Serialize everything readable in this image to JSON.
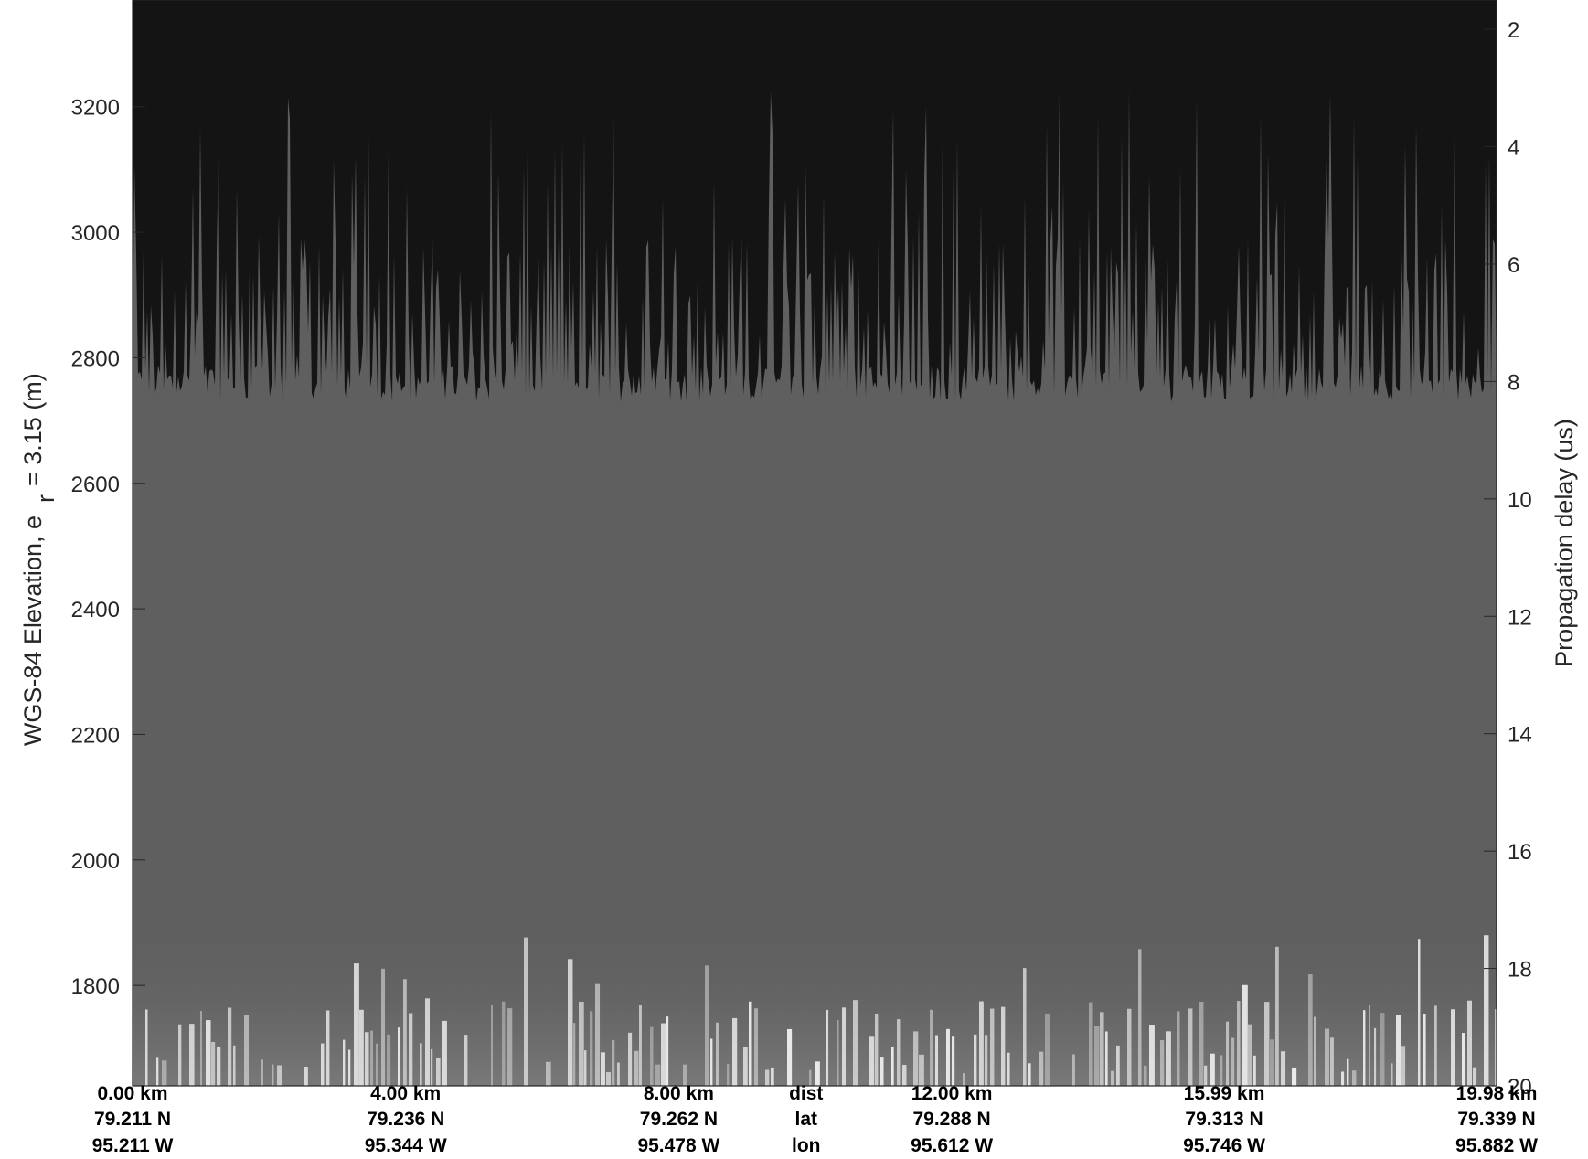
{
  "chart_data": {
    "type": "heatmap",
    "description_visible": "radar echogram",
    "ylabel_left": {
      "main": "WGS-84 Elevation, e",
      "subscript": "r",
      "suffix": "= 3.15 (m)"
    },
    "ylabel_right": "Propagation delay (us)",
    "left_axis": {
      "ylim": [
        1640,
        3370
      ],
      "ticks": [
        1800,
        2000,
        2200,
        2400,
        2600,
        2800,
        3000,
        3200
      ],
      "tick_labels": [
        "1800",
        "2000",
        "2200",
        "2400",
        "2600",
        "2800",
        "3000",
        "3200"
      ]
    },
    "right_axis": {
      "ylim": [
        20,
        1.5
      ],
      "direction": "reversed",
      "ticks": [
        2,
        4,
        6,
        8,
        10,
        12,
        14,
        16,
        18,
        20
      ],
      "tick_labels": [
        "2",
        "4",
        "6",
        "8",
        "10",
        "12",
        "14",
        "16",
        "18",
        "20"
      ]
    },
    "x_axis": {
      "xlim_km": [
        0,
        19.98
      ],
      "row_labels": [
        "dist",
        "lat",
        "lon"
      ],
      "ticks": [
        {
          "dist_km": 0.0,
          "dist": "0.00 km",
          "lat": "79.211 N",
          "lon": "95.211 W"
        },
        {
          "dist_km": 4.0,
          "dist": "4.00 km",
          "lat": "79.236 N",
          "lon": "95.344 W"
        },
        {
          "dist_km": 8.0,
          "dist": "8.00 km",
          "lat": "79.262 N",
          "lon": "95.478 W"
        },
        {
          "dist_km": 12.0,
          "dist": "12.00 km",
          "lat": "79.288 N",
          "lon": "95.612 W"
        },
        {
          "dist_km": 15.99,
          "dist": "15.99 km",
          "lat": "79.313 N",
          "lon": "95.746 W"
        },
        {
          "dist_km": 19.98,
          "dist": "19.98 km",
          "lat": "79.339 N",
          "lon": "95.882 W"
        }
      ]
    },
    "surface_elevation_m": {
      "baseline_range": [
        2730,
        2790
      ],
      "spike_range_max": [
        2900,
        3230
      ]
    },
    "colors": {
      "above_surface": "#141414",
      "below_surface": "#5f5f5f",
      "bright_returns": "#f0f0f0",
      "axis": "#262626"
    },
    "colormap": "grayscale",
    "grid": false
  }
}
